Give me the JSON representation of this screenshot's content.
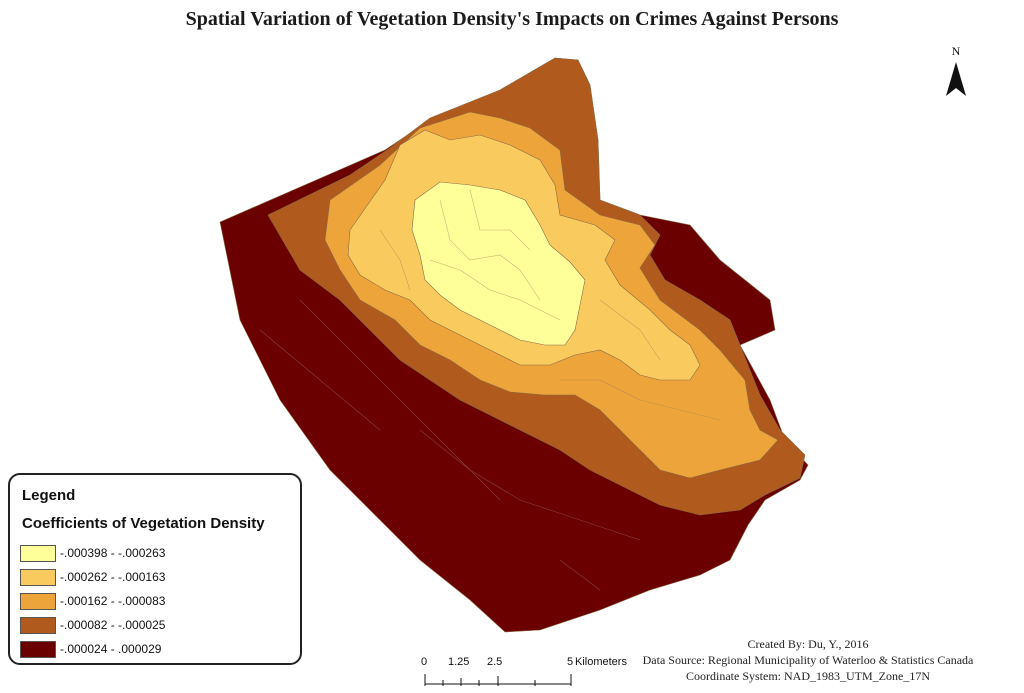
{
  "title": "Spatial Variation of Vegetation Density's Impacts on Crimes Against Persons",
  "north_arrow": {
    "letter": "N",
    "icon": "north-arrow-icon"
  },
  "legend": {
    "title": "Legend",
    "subtitle": "Coefficients of Vegetation Density",
    "classes": [
      {
        "label": "-.000398 - -.000263",
        "color": "#ffff99"
      },
      {
        "label": "-.000262 - -.000163",
        "color": "#f9cb5e"
      },
      {
        "label": "-.000162 - -.000083",
        "color": "#eda43a"
      },
      {
        "label": "-.000082 - -.000025",
        "color": "#b05a1e"
      },
      {
        "label": "-.000024 - .000029",
        "color": "#6b0000"
      }
    ]
  },
  "scalebar": {
    "ticks": [
      "0",
      "1.25",
      "2.5",
      "5"
    ],
    "unit": "Kilometers"
  },
  "credits": {
    "created_by": "Created By: Du, Y., 2016",
    "data_source": "Data Source: Regional Municipality of Waterloo & Statistics Canada",
    "coordinate_system": "Coordinate System: NAD_1983_UTM_Zone_17N"
  }
}
